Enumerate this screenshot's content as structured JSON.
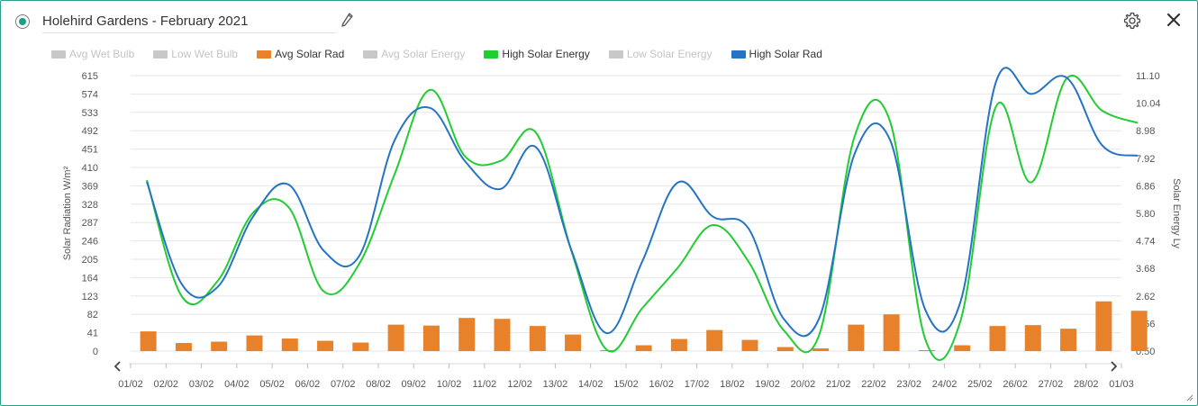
{
  "header": {
    "title": "Holehird Gardens - February 2021",
    "icons": {
      "edit": "pencil-icon",
      "settings": "gear-icon",
      "close": "close-icon",
      "selector": "radio-icon"
    }
  },
  "legend": [
    {
      "label": "Avg Wet Bulb",
      "color": "#c8c8c8",
      "active": false
    },
    {
      "label": "Low Wet Bulb",
      "color": "#c8c8c8",
      "active": false
    },
    {
      "label": "Avg Solar Rad",
      "color": "#e8822a",
      "active": true
    },
    {
      "label": "Avg Solar Energy",
      "color": "#c8c8c8",
      "active": false
    },
    {
      "label": "High Solar Energy",
      "color": "#22cc33",
      "active": true
    },
    {
      "label": "Low Solar Energy",
      "color": "#c8c8c8",
      "active": false
    },
    {
      "label": "High Solar Rad",
      "color": "#2574c4",
      "active": true
    }
  ],
  "chart_data": {
    "type": "line",
    "categories": [
      "01/02",
      "02/02",
      "03/02",
      "04/02",
      "05/02",
      "06/02",
      "07/02",
      "08/02",
      "09/02",
      "10/02",
      "11/02",
      "12/02",
      "13/02",
      "14/02",
      "15/02",
      "16/02",
      "17/02",
      "18/02",
      "19/02",
      "20/02",
      "21/02",
      "22/02",
      "23/02",
      "24/02",
      "25/02",
      "26/02",
      "27/02",
      "28/02",
      "01/03"
    ],
    "ylabel_left": "Solar Radiation W/m²",
    "ylabel_right": "Solar Energy Ly",
    "yticks_left": [
      "615",
      "574",
      "533",
      "492",
      "451",
      "410",
      "369",
      "328",
      "287",
      "246",
      "205",
      "164",
      "123",
      "82",
      "41",
      "0"
    ],
    "yticks_right": [
      "11.10",
      "10.04",
      "8.98",
      "7.92",
      "6.86",
      "5.80",
      "4.74",
      "3.68",
      "2.62",
      "1.56",
      "0.50"
    ],
    "ylim_left": [
      0,
      615
    ],
    "ylim_right": [
      0.5,
      11.1
    ],
    "series": [
      {
        "name": "Avg Solar Rad",
        "type": "bar",
        "axis": "left",
        "color": "#e8822a",
        "values": [
          44,
          18,
          21,
          35,
          28,
          23,
          19,
          59,
          57,
          74,
          72,
          56,
          37,
          2,
          13,
          27,
          47,
          25,
          9,
          6,
          59,
          82,
          2,
          13,
          56,
          58,
          50,
          111,
          90
        ]
      },
      {
        "name": "High Solar Energy",
        "type": "line",
        "axis": "right",
        "color": "#22cc33",
        "values": [
          7.08,
          2.58,
          3.2,
          5.82,
          6.05,
          2.8,
          3.85,
          7.3,
          10.55,
          7.98,
          7.82,
          8.9,
          4.35,
          0.55,
          2.15,
          3.7,
          5.35,
          3.95,
          1.3,
          1.12,
          8.75,
          9.35,
          0.95,
          1.7,
          9.92,
          7.0,
          11.0,
          9.75,
          9.28
        ]
      },
      {
        "name": "High Solar Rad",
        "type": "line",
        "axis": "left",
        "color": "#2574c4",
        "values": [
          378,
          148,
          143,
          300,
          372,
          224,
          212,
          470,
          543,
          423,
          362,
          455,
          225,
          40,
          200,
          376,
          300,
          274,
          72,
          73,
          440,
          472,
          92,
          112,
          602,
          574,
          610,
          459,
          436
        ]
      }
    ]
  },
  "nav": {
    "prev": "chevron-left-icon",
    "next": "chevron-right-icon"
  }
}
